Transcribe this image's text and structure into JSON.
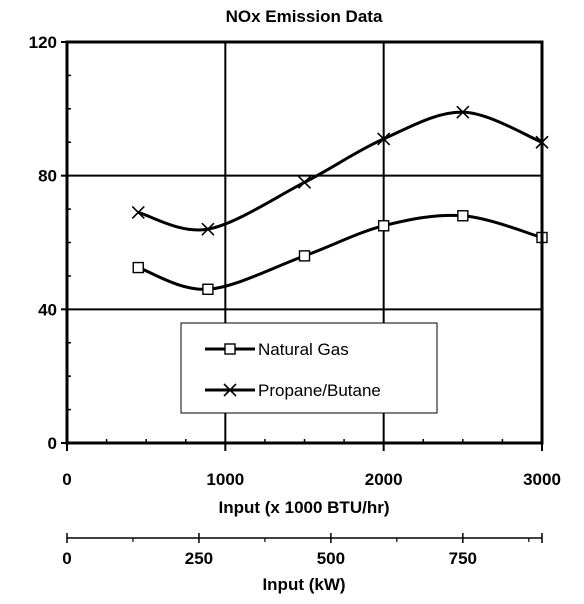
{
  "chart_data": {
    "type": "line",
    "title": "NOx Emission Data",
    "xlabel": "Input (x 1000 BTU/hr)",
    "ylabel": "",
    "xlim": [
      0,
      3000
    ],
    "ylim": [
      0,
      120
    ],
    "x_ticks": [
      "0",
      "1000",
      "2000",
      "3000"
    ],
    "y_ticks": [
      "0",
      "40",
      "80",
      "120"
    ],
    "grid": true,
    "legend_position": "bottom-center",
    "secondary_x_axis": {
      "label": "Input (kW)",
      "xlim": [
        0,
        900
      ],
      "ticks": [
        "0",
        "250",
        "500",
        "750"
      ]
    },
    "series": [
      {
        "name": "Natural Gas",
        "marker": "square",
        "color": "#000000",
        "x": [
          450,
          890,
          1500,
          2000,
          2500,
          3000
        ],
        "y": [
          52.5,
          46,
          56,
          65,
          68,
          61.5
        ]
      },
      {
        "name": "Propane/Butane",
        "marker": "x",
        "color": "#000000",
        "x": [
          450,
          890,
          1500,
          2000,
          2500,
          3000
        ],
        "y": [
          69,
          64,
          78,
          91,
          99,
          90
        ]
      }
    ]
  }
}
